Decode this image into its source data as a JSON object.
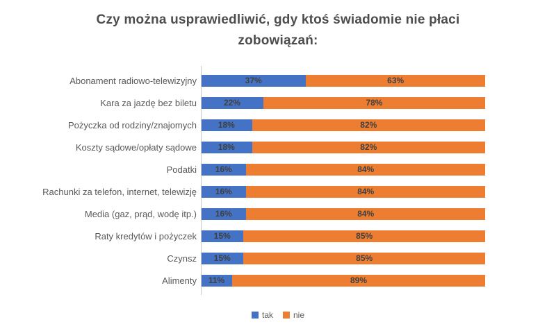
{
  "title": "Czy można usprawiedliwić, gdy ktoś świadomie nie płaci zobowiązań:",
  "colors": {
    "tak": "#4472C4",
    "nie": "#ED7D31",
    "title_text": "#4d4d4d",
    "category_text": "#595959",
    "data_label_text": "#404040",
    "axis_line": "#c9c9c9"
  },
  "chart_data": {
    "type": "bar",
    "orientation": "horizontal",
    "stacked": true,
    "unit": "%",
    "title": "Czy można usprawiedliwić, gdy ktoś świadomie nie płaci zobowiązań:",
    "categories": [
      "Abonament radiowo-telewizyjny",
      "Kara za jazdę bez biletu",
      "Pożyczka od rodziny/znajomych",
      "Koszty sądowe/opłaty sądowe",
      "Podatki",
      "Rachunki za telefon, internet, telewizję",
      "Media (gaz, prąd, wodę itp.)",
      "Raty kredytów i pożyczek",
      "Czynsz",
      "Alimenty"
    ],
    "series": [
      {
        "name": "tak",
        "color": "#4472C4",
        "values": [
          37,
          22,
          18,
          18,
          16,
          16,
          16,
          15,
          15,
          11
        ]
      },
      {
        "name": "nie",
        "color": "#ED7D31",
        "values": [
          63,
          78,
          82,
          82,
          84,
          84,
          84,
          85,
          85,
          89
        ]
      }
    ],
    "xlim": [
      0,
      100
    ],
    "data_labels": true,
    "legend_position": "bottom",
    "grid": false
  }
}
